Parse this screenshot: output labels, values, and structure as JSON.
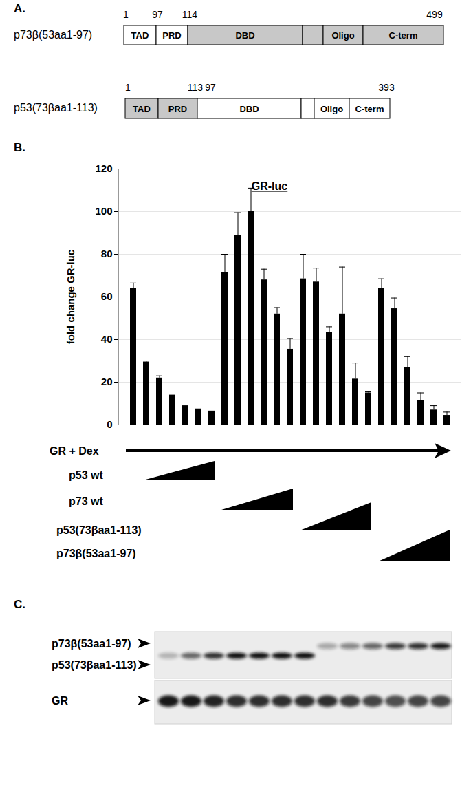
{
  "chart_data": {
    "type": "bar",
    "title": "GR-luc",
    "ylabel": "fold change GR-luc",
    "categories": [
      null,
      null,
      null,
      null,
      null,
      null,
      null,
      null,
      null,
      null,
      null,
      null,
      null,
      null,
      null,
      null,
      null,
      null,
      null,
      null,
      null,
      null,
      null,
      null,
      null
    ],
    "values": [
      64,
      29.5,
      22,
      14,
      9,
      7.5,
      6.5,
      71.5,
      89,
      100,
      68,
      52,
      35.5,
      68.5,
      67,
      43.5,
      52,
      21.5,
      15,
      64,
      54.5,
      27,
      11.5,
      7,
      4.5
    ],
    "errors": [
      2.5,
      0.5,
      1,
      0,
      0,
      0,
      0,
      8.5,
      10.5,
      11,
      5,
      3,
      5,
      11.5,
      6.5,
      2.5,
      22,
      7.5,
      0.5,
      4.5,
      5,
      5,
      3.5,
      2,
      1.5
    ],
    "color": "#000000",
    "ylim": [
      0,
      120
    ],
    "yticks": [
      0,
      20,
      40,
      60,
      80,
      100,
      120
    ],
    "grid": true,
    "tick_labels": "y"
  },
  "panel_labels": [
    "A.",
    "B.",
    "C."
  ],
  "constructs": [
    {
      "name": "p73β(53aa1-97)",
      "positions": [
        1,
        97,
        114,
        499
      ],
      "domains": [
        {
          "label": "TAD",
          "fill": "#ffffff"
        },
        {
          "label": "PRD",
          "fill": "#ffffff"
        },
        {
          "label": "DBD",
          "fill": "#c8c8c8"
        },
        {
          "label": null,
          "fill": "#c8c8c8"
        },
        {
          "label": "Oligo",
          "fill": "#c8c8c8"
        },
        {
          "label": "C-term",
          "fill": "#c8c8c8"
        }
      ]
    },
    {
      "name": "p53(73βaa1-113)",
      "positions": [
        1,
        113,
        97,
        393
      ],
      "domains": [
        {
          "label": "TAD",
          "fill": "#c8c8c8"
        },
        {
          "label": "PRD",
          "fill": "#c8c8c8"
        },
        {
          "label": "DBD",
          "fill": "#ffffff"
        },
        {
          "label": null,
          "fill": "#ffffff"
        },
        {
          "label": "Oligo",
          "fill": "#ffffff"
        },
        {
          "label": "C-term",
          "fill": "#ffffff"
        }
      ]
    }
  ],
  "treatments": [
    {
      "label": "GR + Dex",
      "first": 0,
      "last": 24,
      "shape": "arrow"
    },
    {
      "label": "p53 wt",
      "first": 1,
      "last": 6,
      "shape": "wedge"
    },
    {
      "label": "p73 wt",
      "first": 7,
      "last": 12,
      "shape": "wedge"
    },
    {
      "label": "p53(73βaa1-113)",
      "first": 13,
      "last": 18,
      "shape": "wedge"
    },
    {
      "label": "p73β(53aa1-97)",
      "first": 19,
      "last": 24,
      "shape": "wedge"
    }
  ],
  "blot": {
    "upper": [
      {
        "label": "p73β(53aa1-97)",
        "intensity": [
          0,
          0,
          0,
          0,
          0,
          0,
          0,
          0.3,
          0.45,
          0.6,
          0.8,
          0.85,
          0.95
        ]
      },
      {
        "label": "p53(73βaa1-113)",
        "intensity": [
          0.25,
          0.6,
          0.85,
          1,
          1,
          1,
          1,
          0,
          0,
          0,
          0,
          0,
          0
        ]
      }
    ],
    "lower": [
      {
        "label": "GR",
        "intensity": [
          0.95,
          0.95,
          0.9,
          0.85,
          0.85,
          0.85,
          0.85,
          0.85,
          0.8,
          0.75,
          0.7,
          0.75,
          0.75
        ]
      }
    ]
  }
}
